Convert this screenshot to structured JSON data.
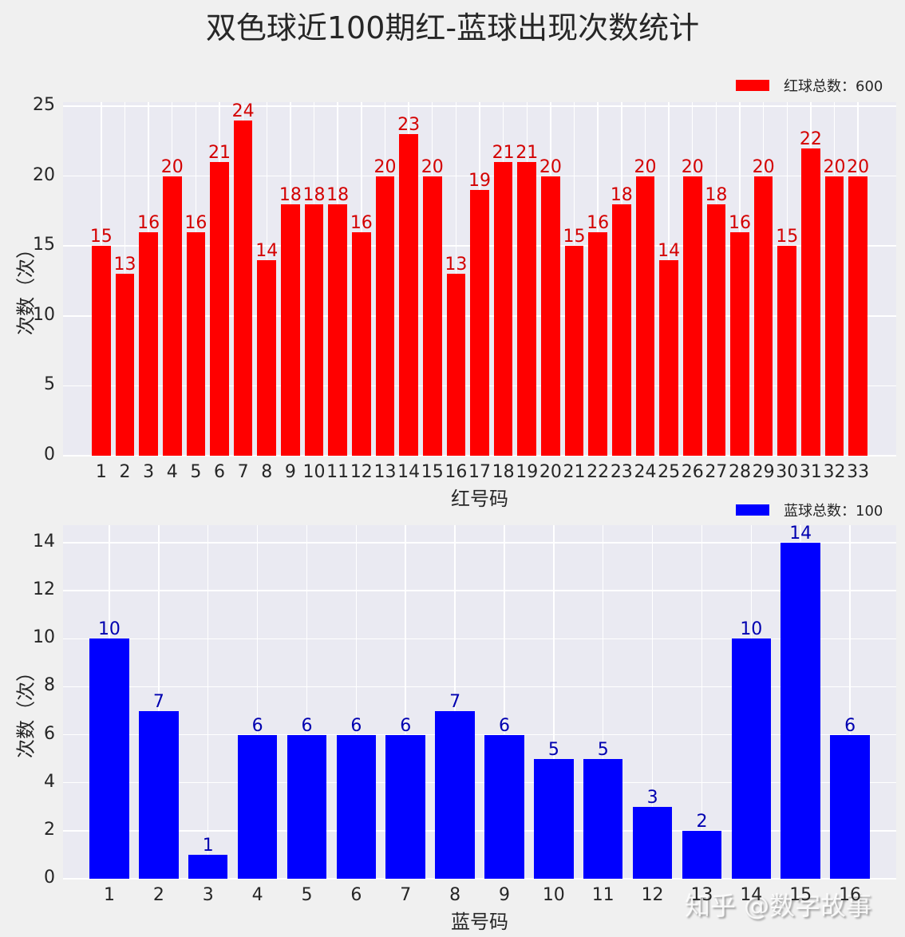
{
  "title": "双色球近100期红-蓝球出现次数统计",
  "watermark": "知乎 @数字故事",
  "colors": {
    "red_bar": "#ff0000",
    "red_label": "#d40000",
    "blue_bar": "#0000ff",
    "blue_label": "#0000b0",
    "plot_bg": "#eaeaf2",
    "figure_bg": "#f0f0f0",
    "grid": "#ffffff"
  },
  "chart_data": [
    {
      "type": "bar",
      "title": "双色球近100期红-蓝球出现次数统计",
      "xlabel": "红号码",
      "ylabel": "次数（次）",
      "legend": "红球总数：600",
      "legend_position": "upper right (outside top)",
      "grid": true,
      "ylim": [
        0,
        25
      ],
      "yticks": [
        0,
        5,
        10,
        15,
        20,
        25
      ],
      "categories": [
        "1",
        "2",
        "3",
        "4",
        "5",
        "6",
        "7",
        "8",
        "9",
        "10",
        "11",
        "12",
        "13",
        "14",
        "15",
        "16",
        "17",
        "18",
        "19",
        "20",
        "21",
        "22",
        "23",
        "24",
        "25",
        "26",
        "27",
        "28",
        "29",
        "30",
        "31",
        "32",
        "33"
      ],
      "values": [
        15,
        13,
        16,
        20,
        16,
        21,
        24,
        14,
        18,
        18,
        18,
        16,
        20,
        23,
        20,
        13,
        19,
        21,
        21,
        20,
        15,
        16,
        18,
        20,
        14,
        20,
        18,
        16,
        20,
        15,
        22,
        20,
        20
      ],
      "color": "#ff0000"
    },
    {
      "type": "bar",
      "xlabel": "蓝号码",
      "ylabel": "次数（次）",
      "legend": "蓝球总数：100",
      "legend_position": "upper right (outside top)",
      "grid": true,
      "ylim": [
        0,
        14.7
      ],
      "yticks": [
        0,
        2,
        4,
        6,
        8,
        10,
        12,
        14
      ],
      "categories": [
        "1",
        "2",
        "3",
        "4",
        "5",
        "6",
        "7",
        "8",
        "9",
        "10",
        "11",
        "12",
        "13",
        "14",
        "15",
        "16"
      ],
      "values": [
        10,
        7,
        1,
        6,
        6,
        6,
        6,
        7,
        6,
        5,
        5,
        3,
        2,
        10,
        14,
        6
      ],
      "color": "#0000ff"
    }
  ]
}
